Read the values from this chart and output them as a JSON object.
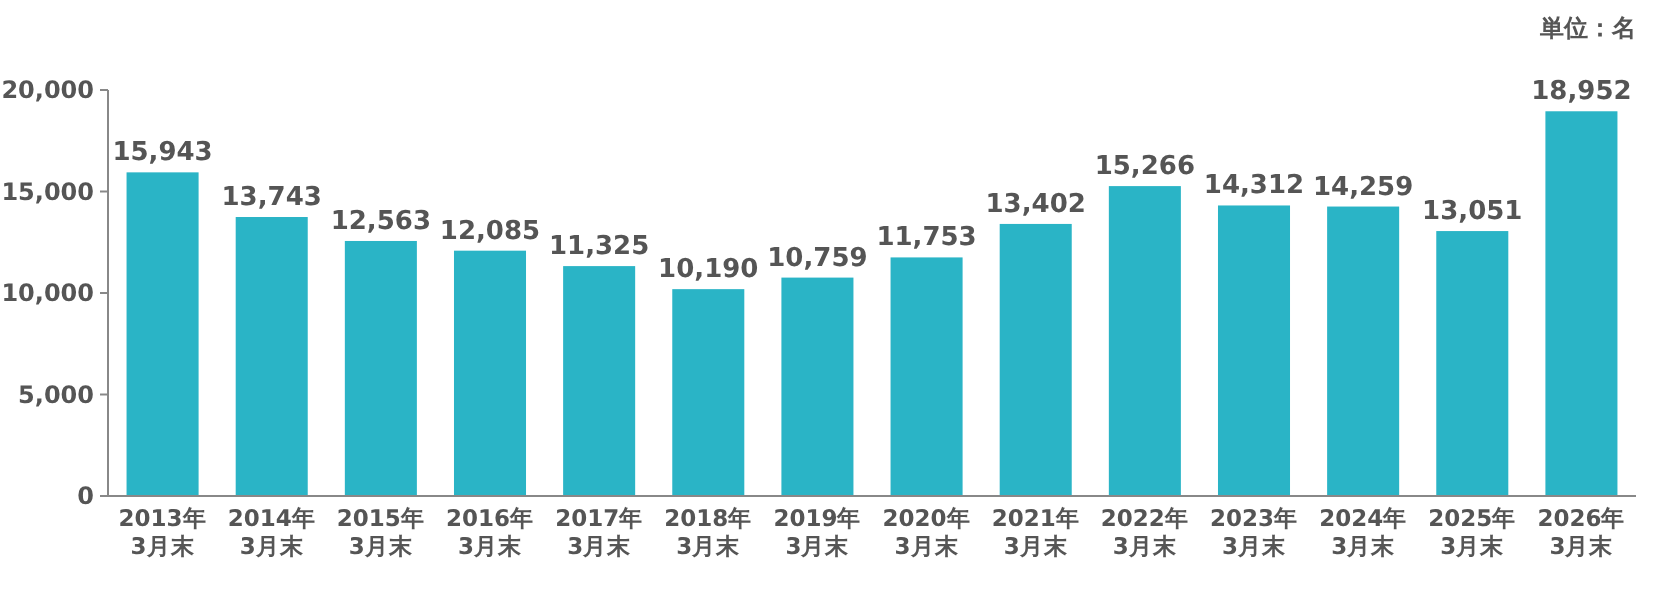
{
  "chart_data": {
    "type": "bar",
    "categories": [
      "2013年 3月末",
      "2014年 3月末",
      "2015年 3月末",
      "2016年 3月末",
      "2017年 3月末",
      "2018年 3月末",
      "2019年 3月末",
      "2020年 3月末",
      "2021年 3月末",
      "2022年 3月末",
      "2023年 3月末",
      "2024年 3月末",
      "2025年 3月末",
      "2026年 3月末"
    ],
    "values": [
      15943,
      13743,
      12563,
      12085,
      11325,
      10190,
      10759,
      11753,
      13402,
      15266,
      14312,
      14259,
      13051,
      18952
    ],
    "value_labels": [
      "15,943",
      "13,743",
      "12,563",
      "12,085",
      "11,325",
      "10,190",
      "10,759",
      "11,753",
      "13,402",
      "15,266",
      "14,312",
      "14,259",
      "13,051",
      "18,952"
    ],
    "color": "#2ab4c6",
    "ylim": [
      0,
      20000
    ],
    "yticks": [
      {
        "value": 0,
        "label": "0"
      },
      {
        "value": 5000,
        "label": "5,000"
      },
      {
        "value": 10000,
        "label": "10,000"
      },
      {
        "value": 15000,
        "label": "15,000"
      },
      {
        "value": 20000,
        "label": "20,000"
      }
    ],
    "annotations": [
      "単位：名"
    ]
  }
}
